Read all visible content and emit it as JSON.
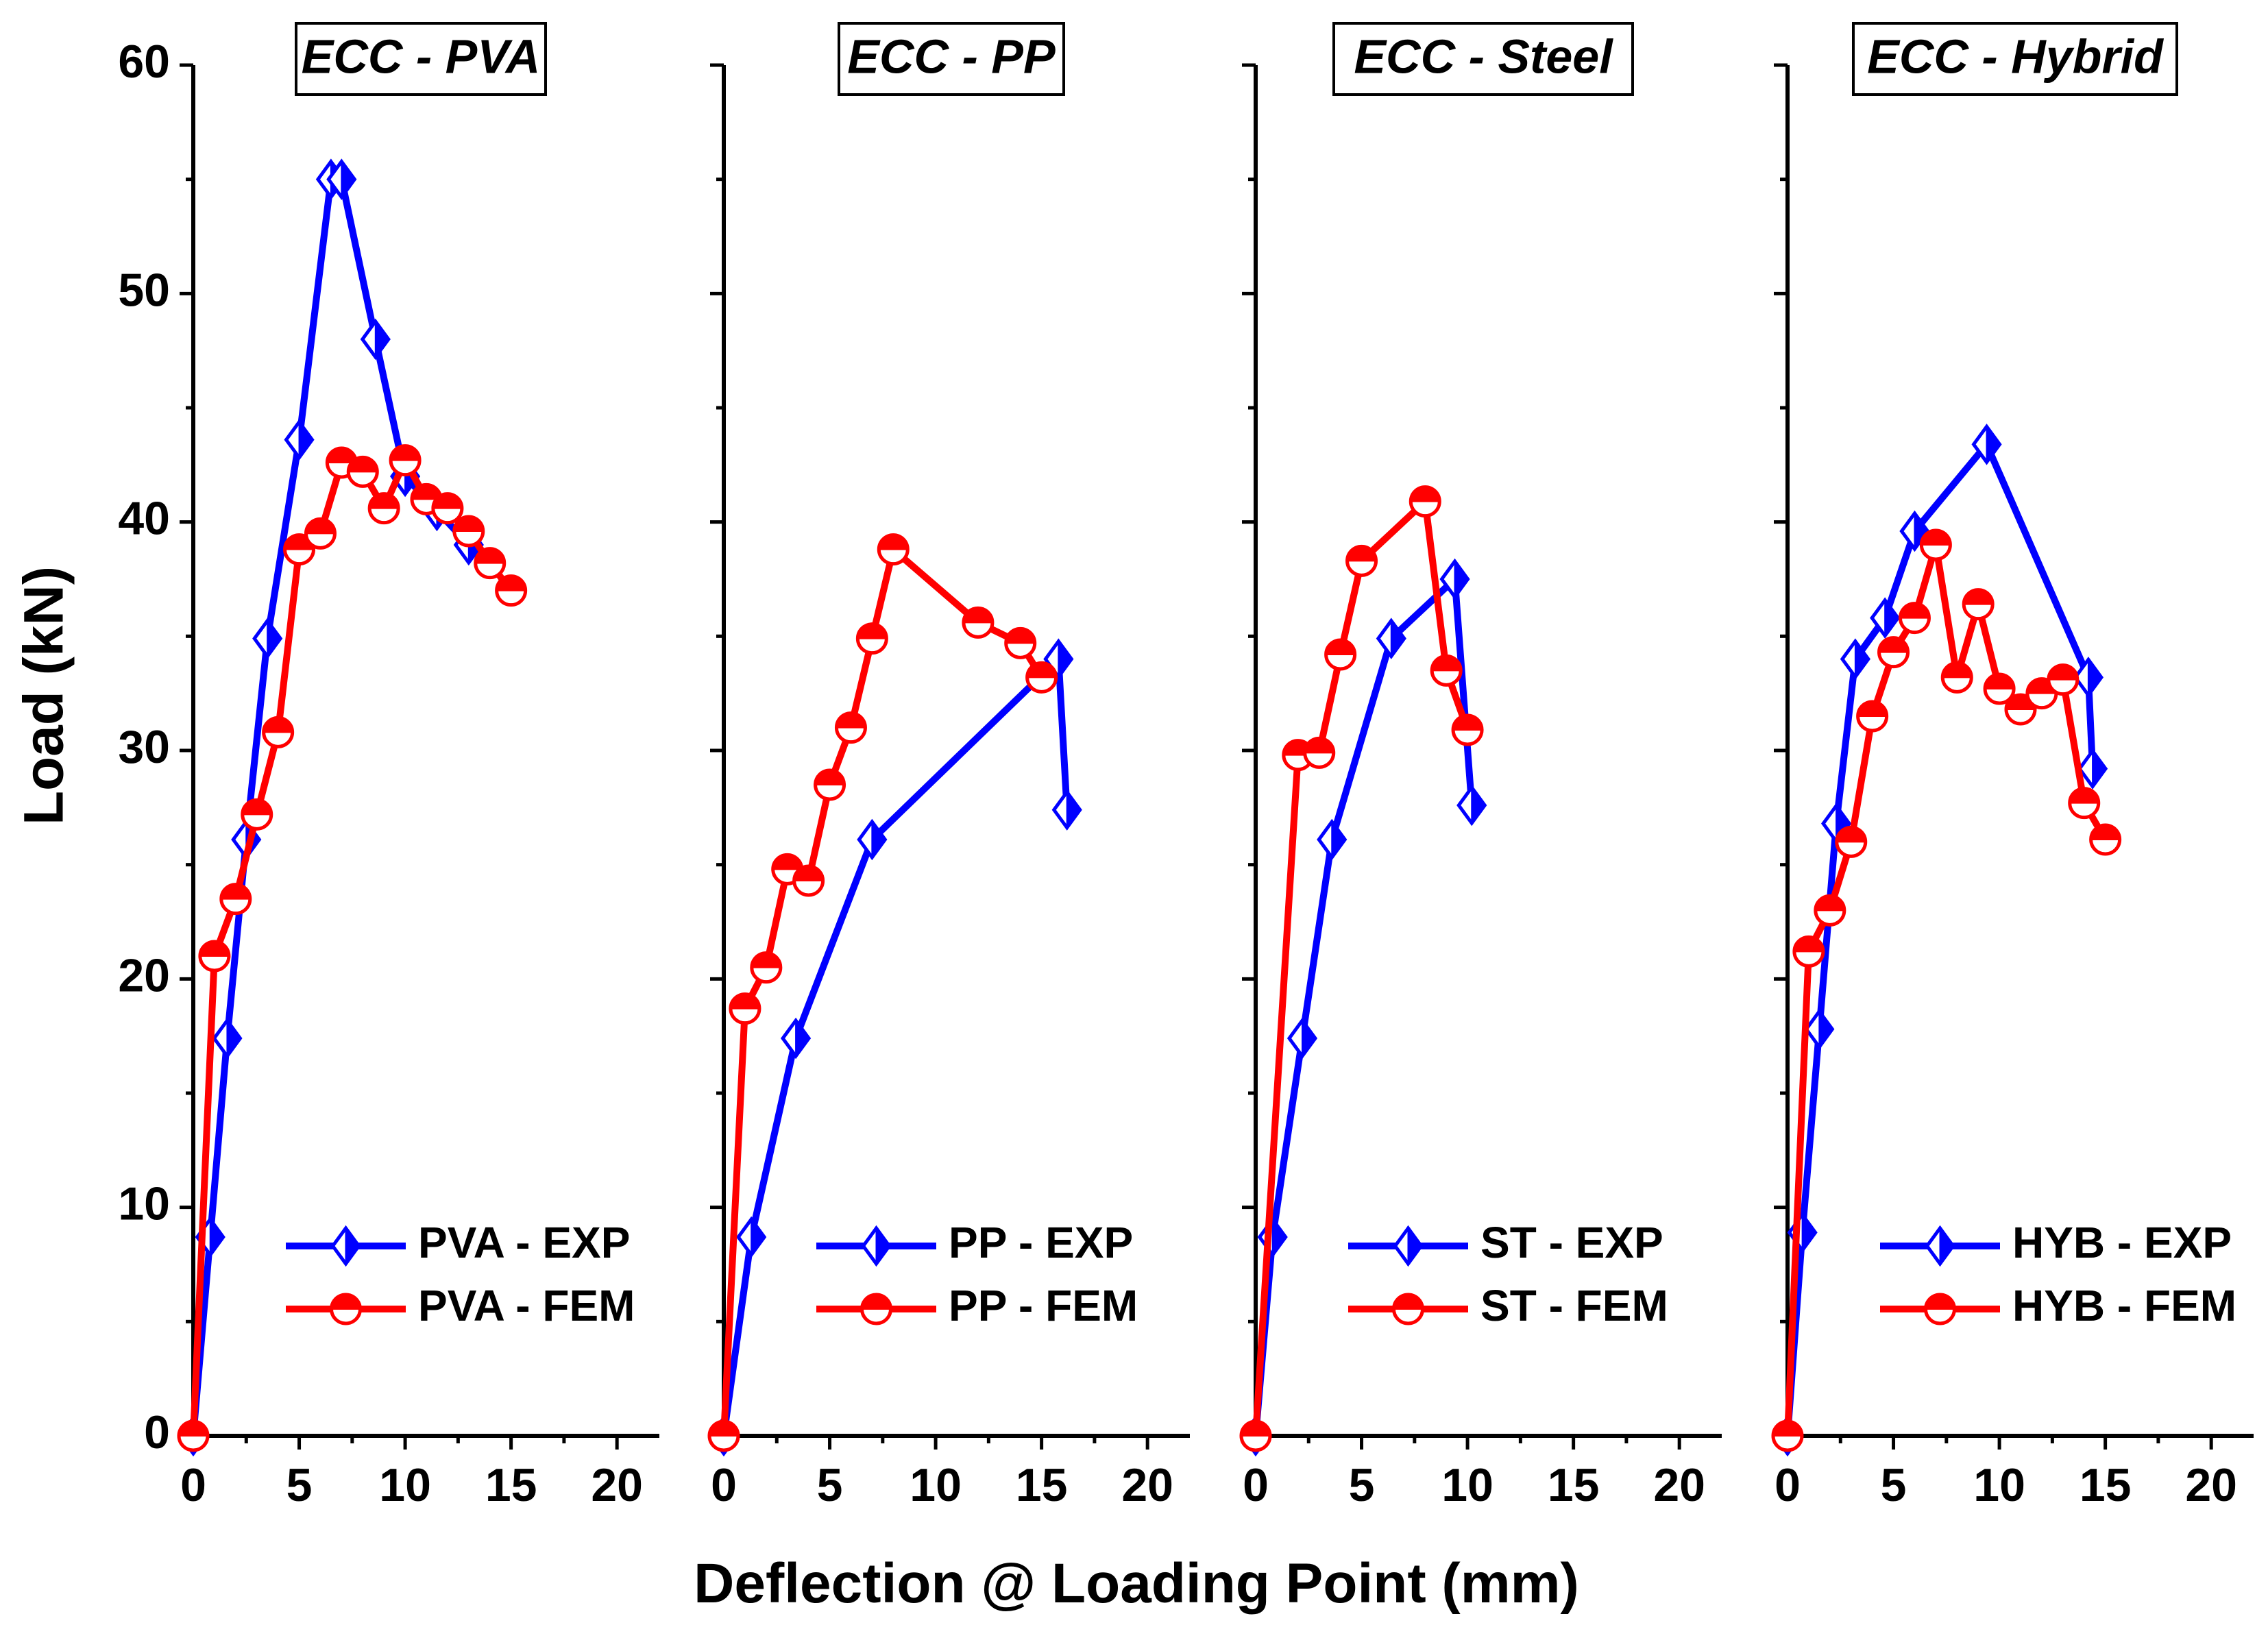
{
  "colors": {
    "exp": "#0000ff",
    "fem": "#ff0000",
    "axis": "#000000"
  },
  "chart_data": {
    "type": "line",
    "ylabel": "Load (kN)",
    "xlabel": "Deflection @ Loading Point (mm)",
    "ylim": [
      0,
      60
    ],
    "yticks": [
      0,
      10,
      20,
      30,
      40,
      50,
      60
    ],
    "xlim": [
      0,
      22
    ],
    "xticks": [
      0,
      5,
      10,
      15,
      20
    ],
    "legend_position": "bottom-right",
    "panels": [
      {
        "title": "ECC - PVA",
        "series": [
          {
            "name": "PVA - EXP",
            "kind": "exp",
            "x": [
              0,
              0.8,
              1.6,
              2.5,
              3.5,
              5.0,
              6.5,
              7.0,
              8.6,
              10.0,
              11.5,
              13.0
            ],
            "y": [
              0,
              8.7,
              17.4,
              26.1,
              34.9,
              43.6,
              55.0,
              55.0,
              48.0,
              42.0,
              40.5,
              39.0
            ]
          },
          {
            "name": "PVA - FEM",
            "kind": "fem",
            "x": [
              0,
              1.0,
              2.0,
              3.0,
              4.0,
              5.0,
              6.0,
              7.0,
              8.0,
              9.0,
              10.0,
              11.0,
              12.0,
              13.0,
              14.0,
              15.0
            ],
            "y": [
              0,
              21.0,
              23.5,
              27.2,
              30.8,
              38.8,
              39.5,
              42.6,
              42.2,
              40.6,
              42.7,
              41.0,
              40.6,
              39.6,
              38.2,
              37.0
            ]
          }
        ]
      },
      {
        "title": "ECC - PP",
        "series": [
          {
            "name": "PP - EXP",
            "kind": "exp",
            "x": [
              0,
              1.3,
              3.4,
              7.0,
              15.8,
              16.2
            ],
            "y": [
              0,
              8.7,
              17.4,
              26.1,
              34.0,
              27.4
            ]
          },
          {
            "name": "PP - FEM",
            "kind": "fem",
            "x": [
              0,
              1.0,
              2.0,
              3.0,
              4.0,
              5.0,
              6.0,
              7.0,
              8.0,
              12.0,
              14.0,
              15.0
            ],
            "y": [
              0,
              18.7,
              20.5,
              24.8,
              24.3,
              28.5,
              31.0,
              34.9,
              38.8,
              35.6,
              34.7,
              33.2
            ]
          }
        ]
      },
      {
        "title": "ECC - Steel",
        "series": [
          {
            "name": "ST - EXP",
            "kind": "exp",
            "x": [
              0,
              0.8,
              2.2,
              3.6,
              6.4,
              9.4,
              10.2
            ],
            "y": [
              0,
              8.7,
              17.4,
              26.1,
              34.9,
              37.5,
              27.6
            ]
          },
          {
            "name": "ST - FEM",
            "kind": "fem",
            "x": [
              0,
              2.0,
              3.0,
              4.0,
              5.0,
              8.0,
              9.0,
              10.0
            ],
            "y": [
              0,
              29.8,
              29.9,
              34.2,
              38.3,
              40.9,
              33.5,
              30.9
            ]
          }
        ]
      },
      {
        "title": "ECC - Hybrid",
        "series": [
          {
            "name": "HYB - EXP",
            "kind": "exp",
            "x": [
              0,
              0.7,
              1.5,
              2.3,
              3.2,
              4.6,
              6.0,
              9.4,
              14.2,
              14.4
            ],
            "y": [
              0,
              8.9,
              17.8,
              26.8,
              34.0,
              35.8,
              39.6,
              43.4,
              33.2,
              29.2
            ]
          },
          {
            "name": "HYB - FEM",
            "kind": "fem",
            "x": [
              0,
              1.0,
              2.0,
              3.0,
              4.0,
              5.0,
              6.0,
              7.0,
              8.0,
              9.0,
              10.0,
              11.0,
              12.0,
              13.0,
              14.0,
              15.0
            ],
            "y": [
              0,
              21.2,
              23.0,
              26.0,
              31.5,
              34.3,
              35.8,
              39.0,
              33.2,
              36.4,
              32.7,
              31.8,
              32.5,
              33.1,
              27.7,
              26.1
            ]
          }
        ]
      }
    ]
  }
}
